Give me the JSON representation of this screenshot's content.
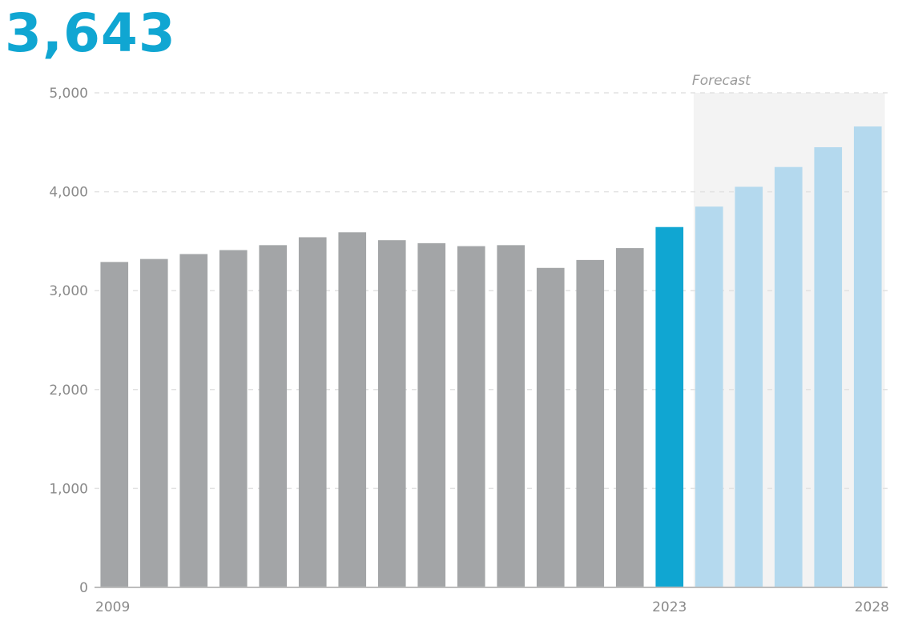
{
  "headline": {
    "value": "3,643",
    "color": "#10a6d2"
  },
  "chart_data": {
    "type": "bar",
    "title": "",
    "xlabel": "",
    "ylabel": "",
    "categories": [
      "2009",
      "2010",
      "2011",
      "2012",
      "2013",
      "2014",
      "2015",
      "2016",
      "2017",
      "2018",
      "2019",
      "2020",
      "2021",
      "2022",
      "2023",
      "2024",
      "2025",
      "2026",
      "2027",
      "2028"
    ],
    "x_tick_labels": [
      {
        "category": "2009",
        "label": "2009"
      },
      {
        "category": "2023",
        "label": "2023",
        "highlight": true
      },
      {
        "category": "2028",
        "label": "2028"
      }
    ],
    "values": [
      3290,
      3320,
      3370,
      3410,
      3460,
      3540,
      3590,
      3510,
      3480,
      3450,
      3460,
      3230,
      3310,
      3430,
      3643,
      3850,
      4050,
      4250,
      4450,
      4660
    ],
    "bar_status": [
      "historical",
      "historical",
      "historical",
      "historical",
      "historical",
      "historical",
      "historical",
      "historical",
      "historical",
      "historical",
      "historical",
      "historical",
      "historical",
      "historical",
      "current",
      "forecast",
      "forecast",
      "forecast",
      "forecast",
      "forecast"
    ],
    "colors": {
      "historical": "#a3a5a7",
      "current": "#10a6d2",
      "forecast": "#b4d9ee",
      "forecast_region": "#f3f3f3",
      "gridline": "#e2e2e2",
      "axis_text": "#8a8a8a"
    },
    "ylim": [
      0,
      5000
    ],
    "y_ticks": [
      {
        "value": 0,
        "label": "0"
      },
      {
        "value": 1000,
        "label": "1,000"
      },
      {
        "value": 2000,
        "label": "2,000"
      },
      {
        "value": 3000,
        "label": "3,000"
      },
      {
        "value": 4000,
        "label": "4,000"
      },
      {
        "value": 5000,
        "label": "5,000"
      }
    ],
    "grid": true,
    "forecast_region": {
      "label": "Forecast",
      "start_category": "2024",
      "end_category": "2028"
    }
  }
}
